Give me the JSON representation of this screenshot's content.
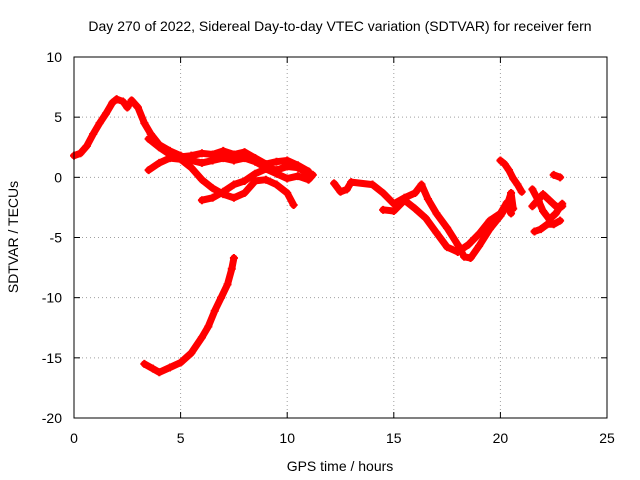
{
  "chart_data": {
    "type": "scatter",
    "title": "Day 270 of 2022, Sidereal Day-to-day VTEC variation (SDTVAR) for receiver fern",
    "xlabel": "GPS time / hours",
    "ylabel": "SDTVAR / TECUs",
    "xlim": [
      0,
      25
    ],
    "ylim": [
      -20,
      10
    ],
    "xticks": [
      0,
      5,
      10,
      15,
      20,
      25
    ],
    "yticks": [
      -20,
      -15,
      -10,
      -5,
      0,
      5,
      10
    ],
    "grid": true,
    "marker": "plus",
    "color": "#ff0000",
    "series": [
      {
        "name": "main-trace",
        "points": [
          [
            0.0,
            1.8
          ],
          [
            0.3,
            2.0
          ],
          [
            0.6,
            2.6
          ],
          [
            0.9,
            3.6
          ],
          [
            1.2,
            4.5
          ],
          [
            1.5,
            5.3
          ],
          [
            1.8,
            6.2
          ],
          [
            2.0,
            6.5
          ],
          [
            2.3,
            6.3
          ],
          [
            2.5,
            5.8
          ],
          [
            2.7,
            6.4
          ],
          [
            3.0,
            5.8
          ],
          [
            3.3,
            4.5
          ],
          [
            3.6,
            3.6
          ],
          [
            4.0,
            2.7
          ],
          [
            4.5,
            2.2
          ],
          [
            5.0,
            1.8
          ],
          [
            5.5,
            1.4
          ],
          [
            6.0,
            1.2
          ],
          [
            6.5,
            1.4
          ],
          [
            7.0,
            1.6
          ],
          [
            7.5,
            1.4
          ],
          [
            8.0,
            1.6
          ],
          [
            8.5,
            1.3
          ],
          [
            9.0,
            0.8
          ],
          [
            9.5,
            0.6
          ],
          [
            10.0,
            0.9
          ],
          [
            10.5,
            0.8
          ],
          [
            11.0,
            0.3
          ]
        ]
      },
      {
        "name": "upper-loop",
        "points": [
          [
            3.5,
            3.2
          ],
          [
            4.0,
            2.5
          ],
          [
            4.5,
            1.9
          ],
          [
            5.0,
            1.7
          ],
          [
            5.5,
            1.8
          ],
          [
            6.0,
            2.0
          ],
          [
            6.5,
            1.9
          ],
          [
            7.0,
            2.2
          ],
          [
            7.5,
            1.9
          ],
          [
            8.0,
            2.1
          ],
          [
            8.5,
            1.6
          ],
          [
            9.0,
            1.1
          ],
          [
            9.5,
            1.3
          ],
          [
            10.0,
            1.4
          ],
          [
            10.5,
            1.0
          ],
          [
            11.0,
            0.5
          ]
        ]
      },
      {
        "name": "descending-branch",
        "points": [
          [
            3.5,
            0.6
          ],
          [
            4.0,
            1.2
          ],
          [
            4.5,
            1.6
          ],
          [
            5.0,
            1.5
          ],
          [
            5.5,
            0.8
          ],
          [
            6.0,
            -0.2
          ],
          [
            6.5,
            -0.9
          ],
          [
            7.0,
            -1.4
          ],
          [
            7.5,
            -1.7
          ],
          [
            8.0,
            -1.3
          ],
          [
            8.5,
            -0.3
          ],
          [
            9.0,
            -0.2
          ],
          [
            9.5,
            -0.6
          ],
          [
            10.0,
            -1.3
          ],
          [
            10.3,
            -2.3
          ]
        ]
      },
      {
        "name": "low-segment",
        "points": [
          [
            6.0,
            -1.9
          ],
          [
            6.5,
            -1.7
          ],
          [
            7.0,
            -1.2
          ],
          [
            7.5,
            -0.6
          ],
          [
            8.0,
            -0.3
          ],
          [
            8.5,
            0.3
          ],
          [
            9.0,
            0.7
          ],
          [
            9.5,
            0.3
          ],
          [
            10.0,
            -0.1
          ],
          [
            10.5,
            0.1
          ],
          [
            11.0,
            -0.2
          ],
          [
            11.2,
            0.2
          ]
        ]
      },
      {
        "name": "lower-left-trace",
        "points": [
          [
            3.3,
            -15.5
          ],
          [
            3.7,
            -15.9
          ],
          [
            4.0,
            -16.2
          ],
          [
            4.5,
            -15.8
          ],
          [
            5.0,
            -15.4
          ],
          [
            5.5,
            -14.6
          ],
          [
            6.0,
            -13.3
          ],
          [
            6.3,
            -12.4
          ],
          [
            6.6,
            -11.1
          ],
          [
            6.9,
            -10.0
          ],
          [
            7.2,
            -8.9
          ],
          [
            7.4,
            -7.6
          ],
          [
            7.5,
            -6.7
          ]
        ]
      },
      {
        "name": "evening-trace",
        "points": [
          [
            12.2,
            -0.5
          ],
          [
            12.5,
            -1.2
          ],
          [
            12.8,
            -1.0
          ],
          [
            13.0,
            -0.4
          ],
          [
            14.0,
            -0.6
          ],
          [
            14.5,
            -1.3
          ],
          [
            15.0,
            -2.2
          ],
          [
            15.5,
            -1.7
          ],
          [
            16.0,
            -1.3
          ],
          [
            16.3,
            -0.6
          ],
          [
            16.6,
            -1.8
          ],
          [
            17.0,
            -3.0
          ],
          [
            17.5,
            -4.2
          ],
          [
            18.0,
            -5.6
          ],
          [
            18.3,
            -6.6
          ],
          [
            18.6,
            -6.7
          ],
          [
            19.0,
            -5.7
          ],
          [
            19.5,
            -4.3
          ],
          [
            20.0,
            -3.2
          ],
          [
            20.3,
            -2.4
          ],
          [
            20.5,
            -1.3
          ],
          [
            20.6,
            -2.6
          ]
        ]
      },
      {
        "name": "evening-trace-2",
        "points": [
          [
            14.5,
            -2.7
          ],
          [
            15.0,
            -2.8
          ],
          [
            15.5,
            -1.9
          ],
          [
            16.0,
            -2.6
          ],
          [
            16.5,
            -3.4
          ],
          [
            17.0,
            -4.6
          ],
          [
            17.5,
            -5.8
          ],
          [
            18.0,
            -6.2
          ],
          [
            18.5,
            -5.6
          ],
          [
            19.0,
            -4.7
          ],
          [
            19.5,
            -3.6
          ],
          [
            20.0,
            -3.0
          ],
          [
            20.3,
            -2.1
          ],
          [
            20.5,
            -3.0
          ]
        ]
      },
      {
        "name": "spike-trace",
        "points": [
          [
            20.0,
            1.4
          ],
          [
            20.2,
            1.1
          ],
          [
            20.4,
            0.6
          ],
          [
            20.6,
            -0.1
          ],
          [
            20.8,
            -0.6
          ],
          [
            21.0,
            -1.2
          ]
        ]
      },
      {
        "name": "right-trace",
        "points": [
          [
            21.5,
            -1.0
          ],
          [
            21.8,
            -2.0
          ],
          [
            22.0,
            -2.8
          ],
          [
            22.3,
            -3.5
          ],
          [
            22.6,
            -3.0
          ],
          [
            22.9,
            -2.2
          ]
        ]
      },
      {
        "name": "right-trace-2",
        "points": [
          [
            21.5,
            -2.4
          ],
          [
            21.8,
            -1.8
          ],
          [
            22.0,
            -1.4
          ],
          [
            22.3,
            -1.9
          ],
          [
            22.6,
            -2.4
          ],
          [
            22.9,
            -2.4
          ]
        ]
      },
      {
        "name": "right-trace-3",
        "points": [
          [
            21.6,
            -4.5
          ],
          [
            21.9,
            -4.3
          ],
          [
            22.2,
            -3.9
          ],
          [
            22.5,
            -3.9
          ],
          [
            22.8,
            -3.6
          ]
        ]
      },
      {
        "name": "tail-trace",
        "points": [
          [
            22.5,
            0.2
          ],
          [
            22.8,
            0.0
          ]
        ]
      }
    ]
  }
}
